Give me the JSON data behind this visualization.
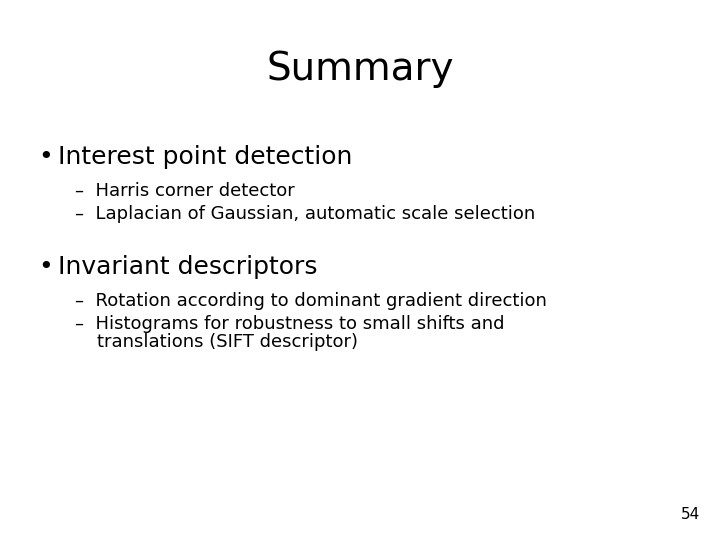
{
  "title": "Summary",
  "title_fontsize": 28,
  "background_color": "#ffffff",
  "text_color": "#000000",
  "bullet1": "Interest point detection",
  "bullet1_fontsize": 18,
  "sub1a": "Harris corner detector",
  "sub1b": "Laplacian of Gaussian, automatic scale selection",
  "sub_fontsize": 13,
  "bullet2": "Invariant descriptors",
  "bullet2_fontsize": 18,
  "sub2a": "Rotation according to dominant gradient direction",
  "sub2b_line1": "Histograms for robustness to small shifts and",
  "sub2b_line2": "translations (SIFT descriptor)",
  "page_number": "54",
  "page_number_fontsize": 11
}
